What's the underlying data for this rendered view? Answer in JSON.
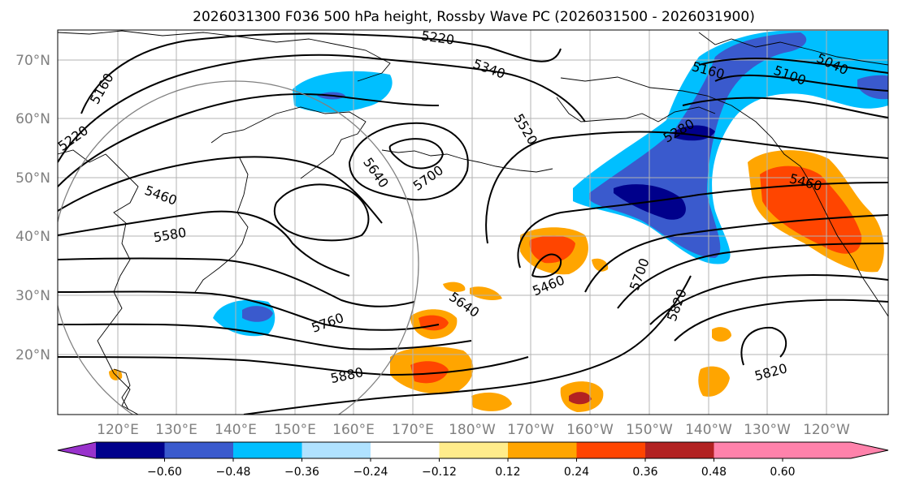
{
  "figure": {
    "title": "2026031300 F036 500 hPa height, Rossby Wave PC (2026031500 - 2026031900)"
  },
  "map": {
    "lat_labels": [
      "70°N",
      "60°N",
      "50°N",
      "40°N",
      "30°N",
      "20°N"
    ],
    "lon_labels": [
      "120°E",
      "130°E",
      "140°E",
      "150°E",
      "160°E",
      "170°E",
      "180°W",
      "170°W",
      "160°W",
      "150°W",
      "140°W",
      "130°W",
      "120°W"
    ],
    "contour_labels": [
      "5160",
      "5220",
      "5220",
      "5340",
      "5520",
      "5640",
      "5700",
      "5460",
      "5580",
      "5640",
      "5460",
      "5760",
      "5880",
      "5700",
      "5820",
      "5820",
      "5160",
      "5100",
      "5040",
      "5280",
      "5460"
    ]
  },
  "colorbar": {
    "ticks": [
      "−0.60",
      "−0.48",
      "−0.36",
      "−0.24",
      "−0.12",
      "0.12",
      "0.24",
      "0.36",
      "0.48",
      "0.60"
    ],
    "colors": [
      "#9932cc",
      "#00008b",
      "#3a5acd",
      "#00bfff",
      "#b0e2ff",
      "#ffffff",
      "#ffec8b",
      "#ffa500",
      "#ff4500",
      "#b22222",
      "#ff82ab"
    ]
  },
  "colors": {
    "neg_strong": "#00008b",
    "neg_mid": "#3a5acd",
    "neg_weak": "#00bfff",
    "pos_weak": "#ffa500",
    "pos_mid": "#ff4500",
    "pos_strong": "#b22222"
  }
}
